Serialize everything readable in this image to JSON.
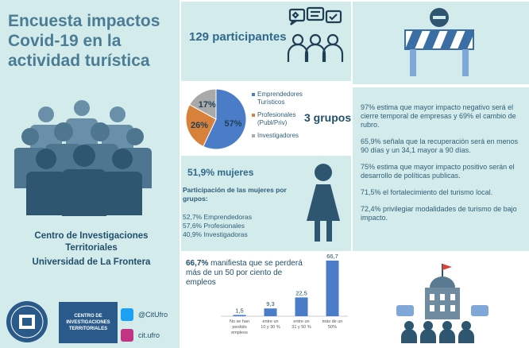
{
  "title": "Encuesta impactos Covid-19 en la actividad turística",
  "participants": "129 participantes",
  "groups_label": "3 grupos",
  "groups_pie": {
    "slices": [
      {
        "label": "Emprendedores Turísticos",
        "value": 57,
        "text": "57%",
        "color": "#4a7cc7"
      },
      {
        "label": "Profesionales (Publ/Priv)",
        "value": 26,
        "text": "26%",
        "color": "#d8813b"
      },
      {
        "label": "Investigadores",
        "value": 17,
        "text": "17%",
        "color": "#a9a9a9"
      }
    ]
  },
  "women": {
    "pct": "51,9% mujeres",
    "subtitle": "Participación de las mujeres por grupos:",
    "items": [
      "52,7% Emprendedoras",
      "57,6% Profesionales",
      "40,9% Investigadoras"
    ]
  },
  "stats": [
    "97% estima que mayor impacto negativo será el cierre temporal de empresas y  69% el cambio de rubro.",
    "65,9% señala que la recuperación será en menos 90 días y un 34,1 mayor a 90 días.",
    "75%  estima que mayor impacto positivo serán el desarrollo de políticas publicas.",
    "71,5% el fortalecimiento del turismo local.",
    "72,4% privilegiar modalidades de turismo de bajo impacto."
  ],
  "lose": {
    "bold": "66,7%",
    "text": " manifiesta que se perderá más de un 50 por ciento de empleos"
  },
  "chart_data": {
    "type": "bar",
    "categories": [
      "No se han perdido empleos",
      "entre un 10 y 30 %",
      "entre un 31 y 50 %",
      "más de un 50%"
    ],
    "values": [
      1.5,
      9.3,
      22.5,
      66.7
    ],
    "value_labels": [
      "1,5",
      "9,3",
      "22,5",
      "66,7"
    ],
    "ylim": [
      0,
      66.7
    ],
    "color": "#4a7cc7"
  },
  "org": {
    "line1": "Centro de Investigaciones Territoriales",
    "line2": "Universidad de La Frontera"
  },
  "logo_text": "CENTRO DE INVESTIGACIONES TERRITORIALES",
  "social": {
    "twitter": "@CitUfro",
    "instagram": "cit.ufro"
  },
  "colors": {
    "panel": "#d4ebeb",
    "title": "#4a7d95",
    "accent": "#2e6a8c"
  }
}
